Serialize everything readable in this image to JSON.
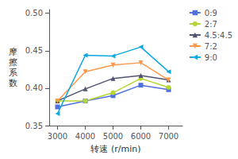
{
  "chart_data": {
    "type": "line",
    "xlabel": "转速 (r/min)",
    "ylabel": "摩擦系数",
    "x": [
      3000,
      4000,
      5000,
      6000,
      7000
    ],
    "series": [
      {
        "name": "0:9",
        "values": [
          0.375,
          0.383,
          0.39,
          0.404,
          0.398
        ],
        "marker": "square",
        "line_style": "solid"
      },
      {
        "name": "2:7",
        "values": [
          0.383,
          0.383,
          0.394,
          0.413,
          0.401
        ],
        "marker": "circle",
        "line_style": "solid"
      },
      {
        "name": "4.5:4.5",
        "values": [
          0.383,
          0.399,
          0.413,
          0.417,
          0.411
        ],
        "marker": "triangle_up",
        "line_style": "solid"
      },
      {
        "name": "7:2",
        "values": [
          0.383,
          0.422,
          0.431,
          0.434,
          0.411
        ],
        "marker": "triangle_down",
        "line_style": "solid"
      },
      {
        "name": "9:0",
        "values": [
          0.366,
          0.444,
          0.443,
          0.455,
          0.422
        ],
        "marker": "triangle_left",
        "line_style": "solid"
      }
    ],
    "xlim": [
      2700,
      7500
    ],
    "ylim": [
      0.35,
      0.505
    ],
    "xticks": [
      3000,
      4000,
      5000,
      6000,
      7000
    ],
    "yticks": [
      0.35,
      {
        "value": 0.4,
        "label": "0.40"
      },
      0.45,
      {
        "value": 0.5,
        "label": "0.50"
      }
    ],
    "grid": false,
    "legend": "upper right"
  }
}
